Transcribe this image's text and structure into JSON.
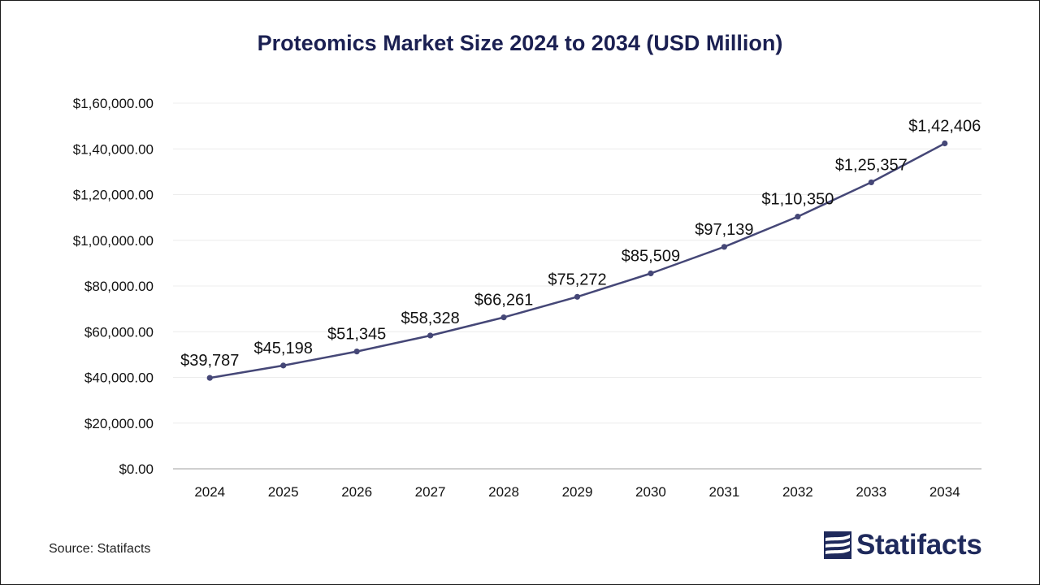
{
  "chart_data": {
    "type": "line",
    "title": "Proteomics Market Size 2024 to 2034 (USD Million)",
    "xlabel": "",
    "ylabel": "",
    "categories": [
      "2024",
      "2025",
      "2026",
      "2027",
      "2028",
      "2029",
      "2030",
      "2031",
      "2032",
      "2033",
      "2034"
    ],
    "values": [
      39787,
      45198,
      51345,
      58328,
      66261,
      75272,
      85509,
      97139,
      110350,
      125357,
      142406
    ],
    "data_labels": [
      "$39,787",
      "$45,198",
      "$51,345",
      "$58,328",
      "$66,261",
      "$75,272",
      "$85,509",
      "$97,139",
      "$1,10,350",
      "$1,25,357",
      "$1,42,406"
    ],
    "ylim": [
      0,
      160000
    ],
    "yticks": [
      0,
      20000,
      40000,
      60000,
      80000,
      100000,
      120000,
      140000,
      160000
    ],
    "ytick_labels": [
      "$0.00",
      "$20,000.00",
      "$40,000.00",
      "$60,000.00",
      "$80,000.00",
      "$1,00,000.00",
      "$1,20,000.00",
      "$1,40,000.00",
      "$1,60,000.00"
    ],
    "grid": true,
    "legend": "none",
    "line_color": "#454777"
  },
  "source": "Source: Statifacts",
  "brand": {
    "name": "Statifacts",
    "color": "#1f2a5c",
    "icon": "statifacts-logo-icon"
  }
}
